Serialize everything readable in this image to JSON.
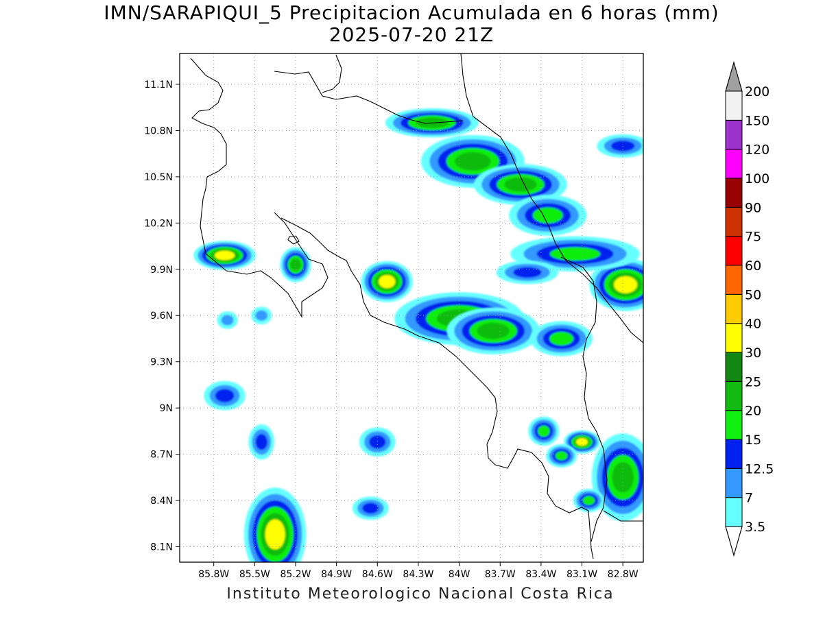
{
  "title_line1": "IMN/SARAPIQUI_5 Precipitacion Acumulada en 6 horas (mm)",
  "title_line2": "2025-07-20 21Z",
  "footer": "Instituto Meteorologico Nacional Costa Rica",
  "map": {
    "lon_range": [
      -86.05,
      -82.65
    ],
    "lat_range": [
      8.0,
      11.3
    ],
    "lat_ticks": [
      {
        "value": 11.1,
        "label": "11.1N"
      },
      {
        "value": 10.8,
        "label": "10.8N"
      },
      {
        "value": 10.5,
        "label": "10.5N"
      },
      {
        "value": 10.2,
        "label": "10.2N"
      },
      {
        "value": 9.9,
        "label": "9.9N"
      },
      {
        "value": 9.6,
        "label": "9.6N"
      },
      {
        "value": 9.3,
        "label": "9.3N"
      },
      {
        "value": 9.0,
        "label": "9N"
      },
      {
        "value": 8.7,
        "label": "8.7N"
      },
      {
        "value": 8.4,
        "label": "8.4N"
      },
      {
        "value": 8.1,
        "label": "8.1N"
      }
    ],
    "lon_ticks": [
      {
        "value": -85.8,
        "label": "85.8W"
      },
      {
        "value": -85.5,
        "label": "85.5W"
      },
      {
        "value": -85.2,
        "label": "85.2W"
      },
      {
        "value": -84.9,
        "label": "84.9W"
      },
      {
        "value": -84.6,
        "label": "84.6W"
      },
      {
        "value": -84.3,
        "label": "84.3W"
      },
      {
        "value": -84.0,
        "label": "84W"
      },
      {
        "value": -83.7,
        "label": "83.7W"
      },
      {
        "value": -83.4,
        "label": "83.4W"
      },
      {
        "value": -83.1,
        "label": "83.1W"
      },
      {
        "value": -82.8,
        "label": "82.8W"
      }
    ],
    "grid": true
  },
  "colorbar": {
    "labels": [
      "3.5",
      "7",
      "12.5",
      "15",
      "20",
      "25",
      "30",
      "40",
      "50",
      "60",
      "75",
      "90",
      "100",
      "120",
      "150",
      "200"
    ],
    "colors": [
      "#66ffff",
      "#3399ff",
      "#0022ee",
      "#11ee11",
      "#11bb11",
      "#118811",
      "#ffff00",
      "#ffcc00",
      "#ff6600",
      "#ff0000",
      "#cc3300",
      "#990000",
      "#ff00ff",
      "#9933cc",
      "#f2f2f2",
      "#a0a0a0"
    ]
  },
  "precip_cells": [
    {
      "lon": -85.72,
      "lat": 9.99,
      "rx": 0.12,
      "ry": 0.05,
      "level": 4
    },
    {
      "lon": -85.2,
      "lat": 9.93,
      "rx": 0.06,
      "ry": 0.06,
      "level": 3
    },
    {
      "lon": -84.53,
      "lat": 9.82,
      "rx": 0.1,
      "ry": 0.07,
      "level": 4
    },
    {
      "lon": -84.0,
      "lat": 9.58,
      "rx": 0.25,
      "ry": 0.09,
      "level": 3
    },
    {
      "lon": -83.75,
      "lat": 9.5,
      "rx": 0.18,
      "ry": 0.08,
      "level": 3
    },
    {
      "lon": -83.9,
      "lat": 10.6,
      "rx": 0.2,
      "ry": 0.09,
      "level": 3
    },
    {
      "lon": -84.2,
      "lat": 10.85,
      "rx": 0.18,
      "ry": 0.05,
      "level": 3
    },
    {
      "lon": -83.55,
      "lat": 10.45,
      "rx": 0.18,
      "ry": 0.07,
      "level": 3
    },
    {
      "lon": -83.35,
      "lat": 10.25,
      "rx": 0.15,
      "ry": 0.07,
      "level": 2
    },
    {
      "lon": -82.78,
      "lat": 9.8,
      "rx": 0.14,
      "ry": 0.09,
      "level": 4
    },
    {
      "lon": -82.8,
      "lat": 8.55,
      "rx": 0.12,
      "ry": 0.15,
      "level": 3
    },
    {
      "lon": -83.1,
      "lat": 8.78,
      "rx": 0.07,
      "ry": 0.04,
      "level": 4
    },
    {
      "lon": -85.35,
      "lat": 8.18,
      "rx": 0.12,
      "ry": 0.16,
      "level": 4
    },
    {
      "lon": -85.72,
      "lat": 9.08,
      "rx": 0.08,
      "ry": 0.05,
      "level": 1
    },
    {
      "lon": -85.45,
      "lat": 8.78,
      "rx": 0.05,
      "ry": 0.06,
      "level": 1
    },
    {
      "lon": -84.6,
      "lat": 8.78,
      "rx": 0.07,
      "ry": 0.05,
      "level": 1
    },
    {
      "lon": -83.38,
      "lat": 8.85,
      "rx": 0.06,
      "ry": 0.05,
      "level": 2
    },
    {
      "lon": -83.25,
      "lat": 8.69,
      "rx": 0.06,
      "ry": 0.04,
      "level": 2
    },
    {
      "lon": -83.25,
      "lat": 9.45,
      "rx": 0.12,
      "ry": 0.06,
      "level": 2
    },
    {
      "lon": -83.15,
      "lat": 10.0,
      "rx": 0.25,
      "ry": 0.06,
      "level": 2
    },
    {
      "lon": -83.5,
      "lat": 9.88,
      "rx": 0.12,
      "ry": 0.04,
      "level": 1
    },
    {
      "lon": -82.8,
      "lat": 10.7,
      "rx": 0.1,
      "ry": 0.04,
      "level": 1
    },
    {
      "lon": -83.05,
      "lat": 8.4,
      "rx": 0.06,
      "ry": 0.04,
      "level": 2
    },
    {
      "lon": -84.65,
      "lat": 8.35,
      "rx": 0.07,
      "ry": 0.04,
      "level": 1
    },
    {
      "lon": -85.7,
      "lat": 9.57,
      "rx": 0.04,
      "ry": 0.03,
      "level": 0
    },
    {
      "lon": -85.45,
      "lat": 9.6,
      "rx": 0.04,
      "ry": 0.03,
      "level": 0
    }
  ]
}
